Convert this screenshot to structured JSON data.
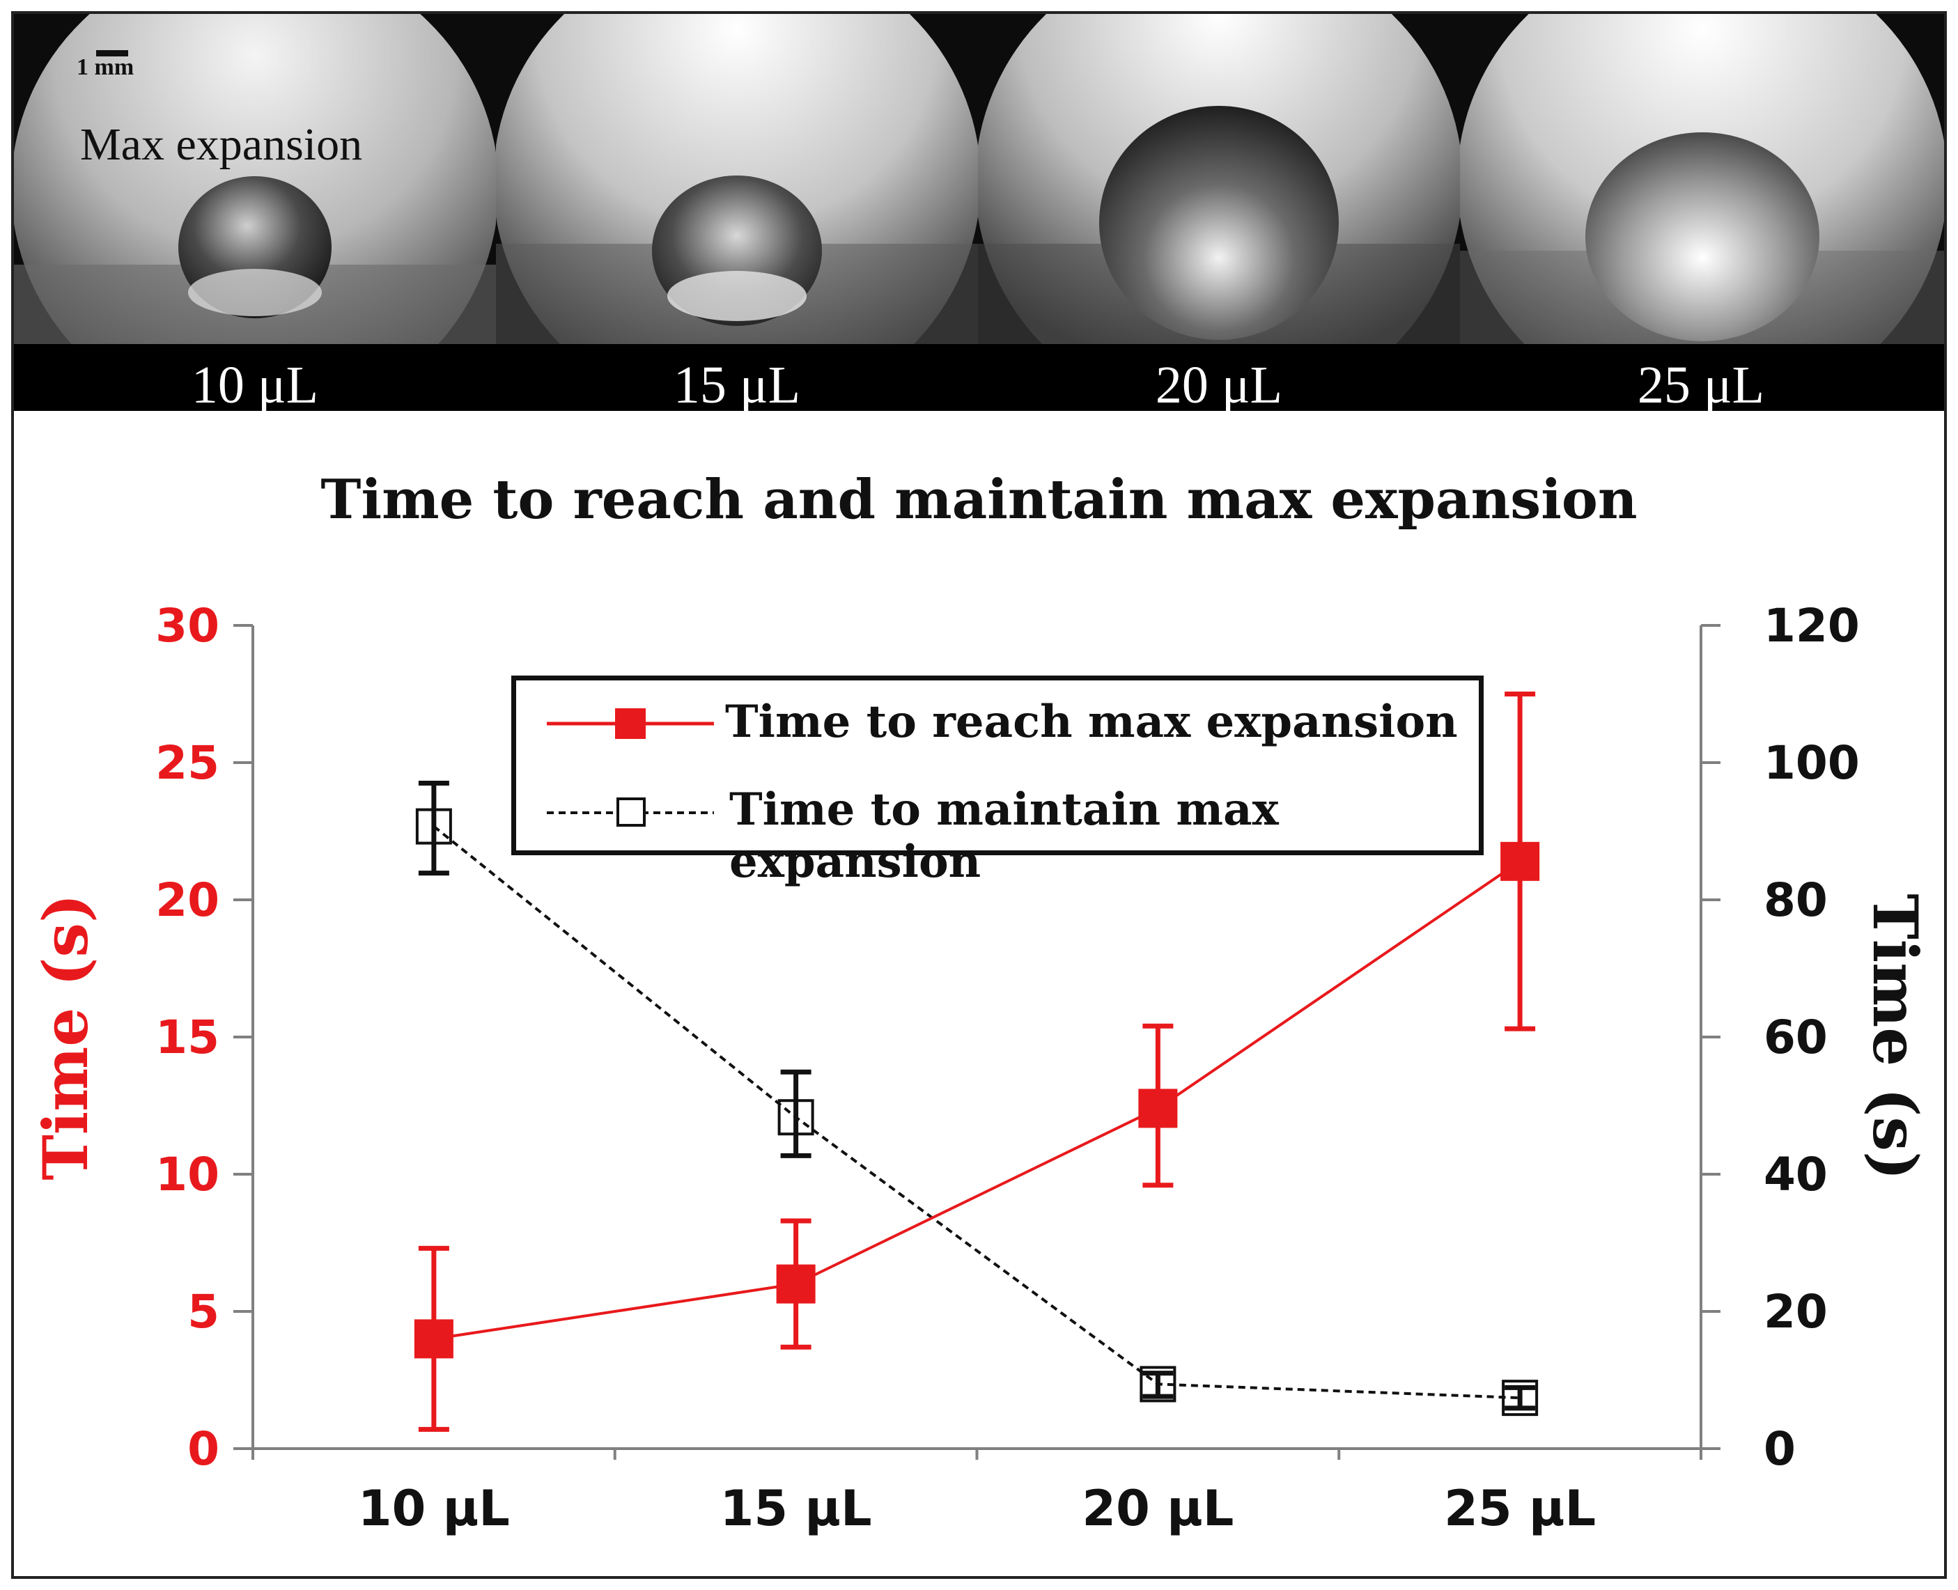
{
  "photos": {
    "annotation": "Max expansion",
    "scale_bar_label": "1 mm",
    "panels": [
      {
        "label": "10 μL"
      },
      {
        "label": "15 μL"
      },
      {
        "label": "20 μL"
      },
      {
        "label": "25 μL"
      }
    ]
  },
  "colors": {
    "red": "#e8191c",
    "black": "#111111",
    "axis": "#808080"
  },
  "chart_data": {
    "type": "line",
    "title": "Time to reach and maintain max expansion",
    "categories": [
      "10 μL",
      "15 μL",
      "20 μL",
      "25 μL"
    ],
    "y_left": {
      "label": "Time (s)",
      "range": [
        0,
        30
      ],
      "ticks": [
        "0",
        "5",
        "10",
        "15",
        "20",
        "25",
        "30"
      ]
    },
    "y_right": {
      "label": "Time (s)",
      "range": [
        0,
        120
      ],
      "ticks": [
        "0",
        "20",
        "40",
        "60",
        "80",
        "100",
        "120"
      ]
    },
    "legend_position": "top-center",
    "series": [
      {
        "name": "Time to reach max expansion",
        "axis": "left",
        "marker": "filled-square",
        "line": "solid",
        "values": [
          4.0,
          6.0,
          12.4,
          21.4
        ],
        "error_low": [
          0.7,
          3.7,
          9.6,
          15.3
        ],
        "error_high": [
          7.3,
          8.3,
          15.4,
          27.5
        ]
      },
      {
        "name": "Time to maintain max expansion",
        "axis": "right",
        "marker": "open-square",
        "line": "dashed",
        "values": [
          90.7,
          48.3,
          9.4,
          7.4
        ],
        "error_low": [
          83.9,
          42.7,
          7.6,
          5.9
        ],
        "error_high": [
          97.0,
          54.9,
          11.0,
          8.9
        ]
      }
    ]
  }
}
